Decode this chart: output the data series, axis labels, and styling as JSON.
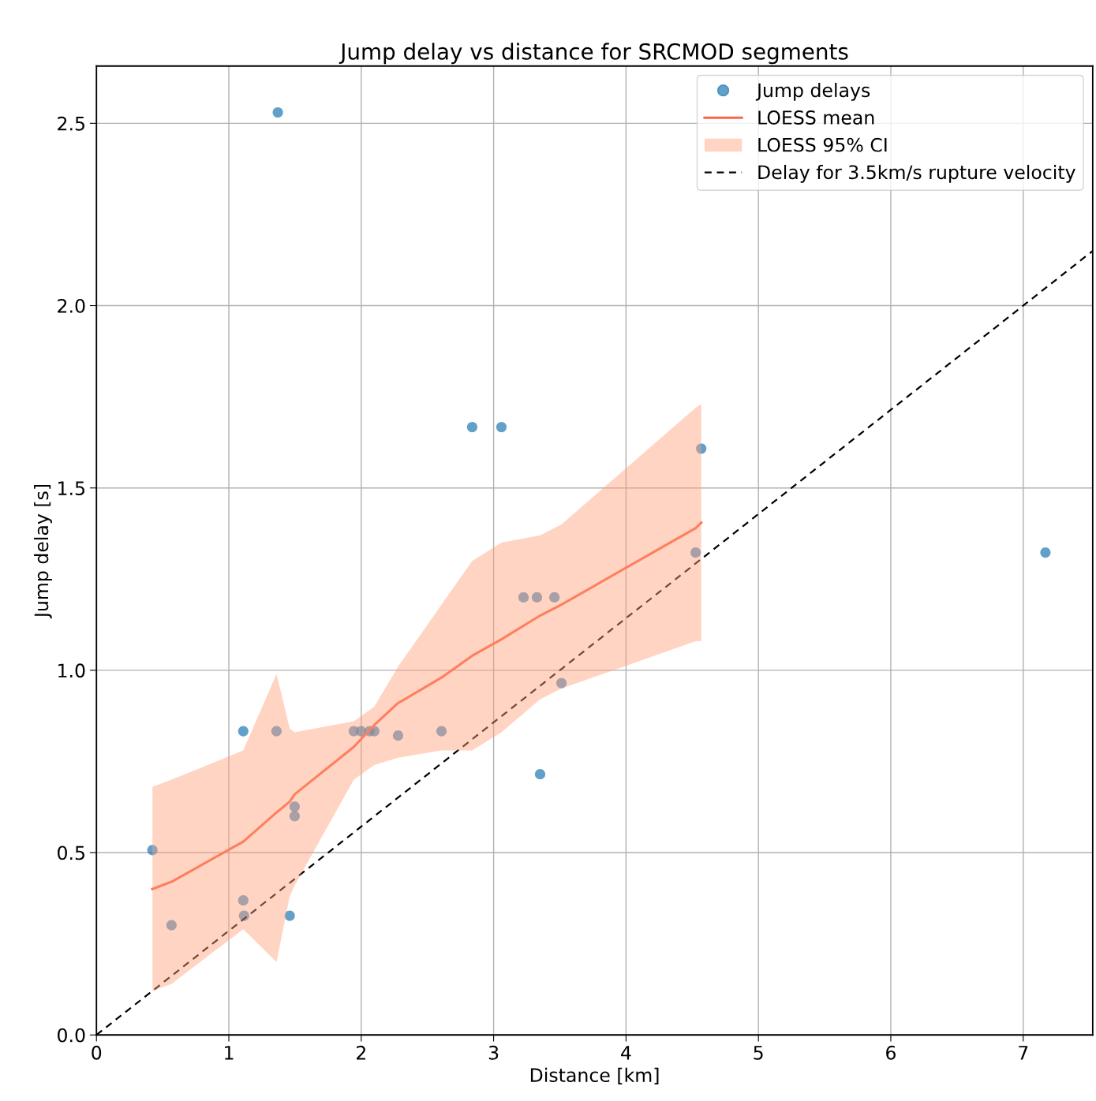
{
  "chart_data": {
    "type": "scatter",
    "title": "Jump delay vs distance for SRCMOD segments",
    "xlabel": "Distance [km]",
    "ylabel": "Jump delay [s]",
    "xlim": [
      0,
      7.525
    ],
    "ylim": [
      0,
      2.657
    ],
    "xticks": [
      0,
      1,
      2,
      3,
      4,
      5,
      6,
      7
    ],
    "yticks": [
      {
        "value": 0,
        "label": "0.0"
      },
      0.5,
      {
        "value": 1,
        "label": "1.0"
      },
      1.5,
      {
        "value": 2,
        "label": "2.0"
      },
      2.5
    ],
    "grid": true,
    "legend": "top right",
    "marker": "circle",
    "series": [
      {
        "name": "Jump delays",
        "color": "#1f77b4",
        "x": [
          0.423,
          0.567,
          1.109,
          1.109,
          1.115,
          1.36,
          1.37,
          1.46,
          1.497,
          1.497,
          1.944,
          1.998,
          2.063,
          2.099,
          2.278,
          2.606,
          2.838,
          3.059,
          3.226,
          3.327,
          3.351,
          3.459,
          3.512,
          4.526,
          4.568,
          7.168
        ],
        "values": [
          0.507,
          0.301,
          0.833,
          0.369,
          0.327,
          0.833,
          2.53,
          0.327,
          0.626,
          0.6,
          0.833,
          0.833,
          0.833,
          0.833,
          0.821,
          0.833,
          1.667,
          1.667,
          1.2,
          1.2,
          0.715,
          1.2,
          0.965,
          1.323,
          1.608,
          1.323
        ]
      },
      {
        "type": "line",
        "name": "LOESS mean",
        "color": "#ff6347",
        "marker": "none",
        "line_style": "solid",
        "x": [
          0.423,
          0.567,
          1.109,
          1.36,
          1.46,
          1.497,
          1.944,
          2.099,
          2.278,
          2.606,
          2.838,
          3.059,
          3.351,
          3.512,
          4.526,
          4.568
        ],
        "values": [
          0.4,
          0.42,
          0.53,
          0.61,
          0.64,
          0.66,
          0.79,
          0.85,
          0.91,
          0.98,
          1.04,
          1.085,
          1.15,
          1.18,
          1.39,
          1.405
        ],
        "lower": [
          0.12,
          0.14,
          0.29,
          0.2,
          0.38,
          0.41,
          0.7,
          0.74,
          0.76,
          0.78,
          0.78,
          0.83,
          0.92,
          0.95,
          1.08,
          1.08
        ],
        "upper": [
          0.68,
          0.7,
          0.78,
          0.99,
          0.84,
          0.83,
          0.86,
          0.9,
          1.01,
          1.18,
          1.3,
          1.35,
          1.37,
          1.4,
          1.72,
          1.73
        ]
      },
      {
        "type": "area",
        "name": "LOESS 95% CI",
        "color": "#ffa07a"
      },
      {
        "type": "line",
        "name": "Delay for 3.5km/s rupture velocity",
        "color": "#000000",
        "marker": "none",
        "line_style": "dashed",
        "x": [
          0,
          7.525
        ],
        "values": [
          0,
          2.15
        ]
      }
    ]
  }
}
